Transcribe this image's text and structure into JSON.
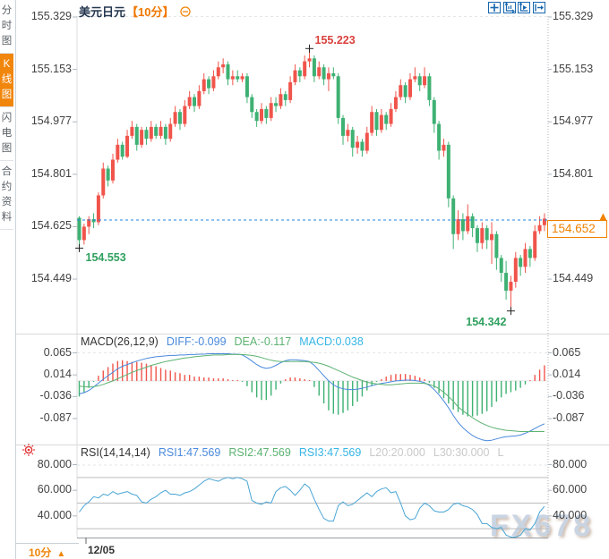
{
  "header": {
    "symbol": "美元日元",
    "period": "【10分】"
  },
  "sidebar": {
    "tabs": [
      {
        "label": "分时图",
        "active": false
      },
      {
        "label": "K线图",
        "active": true
      },
      {
        "label": "闪电图",
        "active": false
      },
      {
        "label": "合约资料",
        "active": false
      }
    ]
  },
  "toolbar": {
    "icons": [
      "pan-icon",
      "axis-zoom-y-icon",
      "axis-zoom-x-icon",
      "pan-right-icon"
    ]
  },
  "bottom": {
    "period_label": "10分",
    "date_label": "12/05"
  },
  "watermark": "FX678",
  "colors": {
    "up": "#f0544b",
    "down": "#3eb173",
    "diff_line": "#4a89dc",
    "dea_line": "#5cb271",
    "macd_cyan": "#35b5e5",
    "price_line": "#1e86e0",
    "accent_orange": "#f0860a",
    "anno_red": "#d9413d",
    "anno_green": "#2fa05f",
    "active_tab_bg": "#f1860d"
  },
  "chart_data": [
    {
      "type": "candlestick",
      "title": "美元日元【10分】",
      "y_ticks_left": [
        "155.329",
        "155.153",
        "154.977",
        "154.801",
        "154.625",
        "154.449"
      ],
      "y_tick_values_left": [
        155.329,
        155.153,
        154.977,
        154.801,
        154.625,
        154.449
      ],
      "y_ticks_right": [
        "155.329",
        "155.153",
        "154.977",
        "154.801",
        "154.449"
      ],
      "y_tick_values_right": [
        155.329,
        155.153,
        154.977,
        154.801,
        154.449
      ],
      "current_price": 154.652,
      "current_price_label": "154.652",
      "x_tick_label": "12/05",
      "annotations": [
        {
          "type": "high",
          "index": 48,
          "price": 155.223,
          "label": "155.223",
          "placement": "above-right"
        },
        {
          "type": "low",
          "index": 0,
          "price": 154.553,
          "label": "154.553",
          "placement": "below-right"
        },
        {
          "type": "low",
          "index": 90,
          "price": 154.342,
          "label": "154.342",
          "placement": "below-left"
        }
      ],
      "candles": [
        [
          154.655,
          154.66,
          154.553,
          154.58
        ],
        [
          154.58,
          154.635,
          154.565,
          154.625
        ],
        [
          154.625,
          154.66,
          154.6,
          154.65
        ],
        [
          154.65,
          154.67,
          154.62,
          154.64
        ],
        [
          154.64,
          154.74,
          154.63,
          154.73
        ],
        [
          154.73,
          154.84,
          154.72,
          154.82
        ],
        [
          154.82,
          154.83,
          154.76,
          154.78
        ],
        [
          154.78,
          154.87,
          154.77,
          154.85
        ],
        [
          154.85,
          154.92,
          154.84,
          154.9
        ],
        [
          154.9,
          154.91,
          154.85,
          154.86
        ],
        [
          154.86,
          154.95,
          154.855,
          154.93
        ],
        [
          154.93,
          154.98,
          154.92,
          154.96
        ],
        [
          154.96,
          154.97,
          154.88,
          154.9
        ],
        [
          154.9,
          154.96,
          154.89,
          154.95
        ],
        [
          154.95,
          154.96,
          154.9,
          154.92
        ],
        [
          154.92,
          154.98,
          154.91,
          154.96
        ],
        [
          154.96,
          154.97,
          154.92,
          154.93
        ],
        [
          154.93,
          154.98,
          154.92,
          154.96
        ],
        [
          154.96,
          154.97,
          154.9,
          154.92
        ],
        [
          154.92,
          154.99,
          154.91,
          154.97
        ],
        [
          154.97,
          155.03,
          154.96,
          155.01
        ],
        [
          155.01,
          155.02,
          154.95,
          154.97
        ],
        [
          154.97,
          155.05,
          154.96,
          155.03
        ],
        [
          155.03,
          155.08,
          155.02,
          155.06
        ],
        [
          155.06,
          155.07,
          155.01,
          155.03
        ],
        [
          155.03,
          155.1,
          155.02,
          155.08
        ],
        [
          155.08,
          155.14,
          155.07,
          155.12
        ],
        [
          155.12,
          155.13,
          155.07,
          155.09
        ],
        [
          155.09,
          155.15,
          155.08,
          155.13
        ],
        [
          155.13,
          155.18,
          155.12,
          155.16
        ],
        [
          155.16,
          155.19,
          155.14,
          155.17
        ],
        [
          155.17,
          155.18,
          155.1,
          155.12
        ],
        [
          155.12,
          155.15,
          155.1,
          155.13
        ],
        [
          155.13,
          155.15,
          155.11,
          155.12
        ],
        [
          155.12,
          155.14,
          155.11,
          155.13
        ],
        [
          155.13,
          155.14,
          155.04,
          155.06
        ],
        [
          155.06,
          155.07,
          154.99,
          155.01
        ],
        [
          155.01,
          155.02,
          154.96,
          154.98
        ],
        [
          154.98,
          155.04,
          154.97,
          155.02
        ],
        [
          155.02,
          155.03,
          154.97,
          154.99
        ],
        [
          154.99,
          155.06,
          154.98,
          155.04
        ],
        [
          155.04,
          155.06,
          155.01,
          155.03
        ],
        [
          155.03,
          155.09,
          155.02,
          155.07
        ],
        [
          155.07,
          155.08,
          155.03,
          155.05
        ],
        [
          155.05,
          155.13,
          155.04,
          155.11
        ],
        [
          155.11,
          155.17,
          155.1,
          155.15
        ],
        [
          155.15,
          155.16,
          155.11,
          155.13
        ],
        [
          155.13,
          155.2,
          155.12,
          155.18
        ],
        [
          155.18,
          155.223,
          155.16,
          155.19
        ],
        [
          155.19,
          155.2,
          155.11,
          155.13
        ],
        [
          155.13,
          155.18,
          155.12,
          155.16
        ],
        [
          155.16,
          155.17,
          155.1,
          155.12
        ],
        [
          155.12,
          155.16,
          155.08,
          155.14
        ],
        [
          155.14,
          155.16,
          155.12,
          155.13
        ],
        [
          155.13,
          155.14,
          154.97,
          154.99
        ],
        [
          154.99,
          155.0,
          154.9,
          154.93
        ],
        [
          154.93,
          154.97,
          154.91,
          154.95
        ],
        [
          154.95,
          154.96,
          154.86,
          154.89
        ],
        [
          154.89,
          154.93,
          154.87,
          154.91
        ],
        [
          154.91,
          154.92,
          154.86,
          154.88
        ],
        [
          154.88,
          154.96,
          154.87,
          154.94
        ],
        [
          154.94,
          155.03,
          154.93,
          155.01
        ],
        [
          155.01,
          155.02,
          154.93,
          154.95
        ],
        [
          154.95,
          155.02,
          154.94,
          155.0
        ],
        [
          155.0,
          155.01,
          154.95,
          154.97
        ],
        [
          154.97,
          155.04,
          154.96,
          155.02
        ],
        [
          155.02,
          155.08,
          155.01,
          155.06
        ],
        [
          155.06,
          155.12,
          155.05,
          155.1
        ],
        [
          155.1,
          155.11,
          155.04,
          155.06
        ],
        [
          155.06,
          155.14,
          155.05,
          155.12
        ],
        [
          155.12,
          155.16,
          155.11,
          155.13
        ],
        [
          155.13,
          155.14,
          155.08,
          155.1
        ],
        [
          155.1,
          155.16,
          155.09,
          155.13
        ],
        [
          155.13,
          155.14,
          155.03,
          155.05
        ],
        [
          155.05,
          155.06,
          154.94,
          154.97
        ],
        [
          154.97,
          154.98,
          154.85,
          154.88
        ],
        [
          154.88,
          154.92,
          154.86,
          154.9
        ],
        [
          154.9,
          154.91,
          154.69,
          154.72
        ],
        [
          154.72,
          154.73,
          154.55,
          154.6
        ],
        [
          154.6,
          154.68,
          154.58,
          154.65
        ],
        [
          154.65,
          154.67,
          154.58,
          154.61
        ],
        [
          154.61,
          154.7,
          154.6,
          154.66
        ],
        [
          154.66,
          154.67,
          154.59,
          154.62
        ],
        [
          154.62,
          154.63,
          154.54,
          154.57
        ],
        [
          154.57,
          154.64,
          154.55,
          154.62
        ],
        [
          154.62,
          154.63,
          154.55,
          154.58
        ],
        [
          154.58,
          154.64,
          154.5,
          154.6
        ],
        [
          154.6,
          154.61,
          154.48,
          154.52
        ],
        [
          154.52,
          154.53,
          154.44,
          154.47
        ],
        [
          154.47,
          154.51,
          154.38,
          154.41
        ],
        [
          154.41,
          154.46,
          154.342,
          154.44
        ],
        [
          154.44,
          154.54,
          154.42,
          154.52
        ],
        [
          154.52,
          154.53,
          154.46,
          154.49
        ],
        [
          154.49,
          154.57,
          154.47,
          154.55
        ],
        [
          154.55,
          154.56,
          154.49,
          154.52
        ],
        [
          154.52,
          154.63,
          154.51,
          154.61
        ],
        [
          154.61,
          154.66,
          154.6,
          154.63
        ],
        [
          154.63,
          154.67,
          154.61,
          154.652
        ]
      ]
    },
    {
      "type": "macd",
      "header": [
        {
          "label": "MACD(26,12,9)",
          "color": "#333333"
        },
        {
          "label": "DIFF:-0.099",
          "color": "#4a89dc"
        },
        {
          "label": "DEA:-0.117",
          "color": "#5cb271"
        },
        {
          "label": "MACD:0.038",
          "color": "#35b5e5"
        }
      ],
      "y_ticks": [
        "0.065",
        "0.014",
        "-0.036",
        "-0.087"
      ],
      "y_tick_values": [
        0.065,
        0.014,
        -0.036,
        -0.087
      ],
      "diff": [
        -0.03,
        -0.027,
        -0.022,
        -0.014,
        -0.005,
        0.004,
        0.012,
        0.02,
        0.028,
        0.034,
        0.038,
        0.042,
        0.046,
        0.049,
        0.052,
        0.054,
        0.056,
        0.057,
        0.058,
        0.059,
        0.059,
        0.06,
        0.06,
        0.061,
        0.061,
        0.062,
        0.062,
        0.063,
        0.063,
        0.063,
        0.063,
        0.063,
        0.062,
        0.062,
        0.06,
        0.054,
        0.046,
        0.038,
        0.032,
        0.029,
        0.031,
        0.036,
        0.042,
        0.047,
        0.049,
        0.049,
        0.048,
        0.047,
        0.045,
        0.036,
        0.024,
        0.012,
        0.0,
        -0.009,
        -0.015,
        -0.018,
        -0.02,
        -0.02,
        -0.019,
        -0.017,
        -0.014,
        -0.011,
        -0.008,
        -0.006,
        -0.004,
        -0.002,
        0.0,
        0.001,
        0.002,
        0.002,
        0.001,
        -0.001,
        -0.004,
        -0.01,
        -0.02,
        -0.032,
        -0.046,
        -0.062,
        -0.08,
        -0.096,
        -0.108,
        -0.118,
        -0.126,
        -0.132,
        -0.136,
        -0.138,
        -0.137,
        -0.134,
        -0.131,
        -0.129,
        -0.128,
        -0.127,
        -0.125,
        -0.121,
        -0.116,
        -0.11,
        -0.104,
        -0.099
      ],
      "dea": [
        -0.012,
        -0.013,
        -0.014,
        -0.013,
        -0.011,
        -0.008,
        -0.004,
        0.0,
        0.005,
        0.01,
        0.015,
        0.02,
        0.024,
        0.028,
        0.032,
        0.036,
        0.039,
        0.042,
        0.045,
        0.047,
        0.049,
        0.051,
        0.053,
        0.054,
        0.056,
        0.057,
        0.058,
        0.059,
        0.06,
        0.06,
        0.06,
        0.061,
        0.061,
        0.061,
        0.061,
        0.06,
        0.059,
        0.057,
        0.054,
        0.051,
        0.048,
        0.046,
        0.045,
        0.045,
        0.045,
        0.045,
        0.045,
        0.045,
        0.044,
        0.043,
        0.041,
        0.038,
        0.034,
        0.029,
        0.024,
        0.019,
        0.014,
        0.009,
        0.005,
        0.001,
        -0.003,
        -0.005,
        -0.007,
        -0.008,
        -0.009,
        -0.009,
        -0.008,
        -0.007,
        -0.006,
        -0.005,
        -0.005,
        -0.005,
        -0.006,
        -0.008,
        -0.012,
        -0.018,
        -0.026,
        -0.036,
        -0.047,
        -0.06,
        -0.069,
        -0.077,
        -0.085,
        -0.092,
        -0.098,
        -0.103,
        -0.107,
        -0.11,
        -0.112,
        -0.114,
        -0.115,
        -0.116,
        -0.117,
        -0.117,
        -0.117,
        -0.117,
        -0.117,
        -0.117
      ],
      "hist_rule": "2x(diff-dea)"
    },
    {
      "type": "rsi",
      "header": [
        {
          "label": "RSI(14,14,14)",
          "color": "#333333"
        },
        {
          "label": "RSI1:47.569",
          "color": "#4a89dc"
        },
        {
          "label": "RSI2:47.569",
          "color": "#5cb271"
        },
        {
          "label": "RSI3:47.569",
          "color": "#35b5e5"
        },
        {
          "label": "L20:20.000",
          "color": "#c9c9c9"
        },
        {
          "label": "L30:30.000",
          "color": "#c9c9c9"
        },
        {
          "label": "L",
          "color": "#c9c9c9"
        }
      ],
      "y_ticks": [
        "80.000",
        "60.000",
        "40.000"
      ],
      "y_tick_values": [
        80,
        60,
        40
      ],
      "levels": [
        80,
        70,
        50,
        30
      ],
      "rsi": [
        43,
        48,
        51,
        55,
        54,
        57,
        56,
        59,
        57,
        58,
        59,
        57,
        56,
        51,
        50,
        53,
        55,
        58,
        60,
        57,
        57,
        56,
        58,
        59,
        61,
        64,
        67,
        69,
        68,
        67,
        69,
        70,
        69,
        70,
        69,
        67,
        52,
        50,
        49,
        51,
        50,
        59,
        62,
        63,
        60,
        56,
        60,
        65,
        62,
        53,
        45,
        38,
        36,
        36,
        48,
        51,
        48,
        49,
        52,
        55,
        58,
        55,
        59,
        61,
        62,
        58,
        59,
        50,
        40,
        37,
        38,
        46,
        50,
        48,
        44,
        43,
        43,
        45,
        49,
        50,
        48,
        47,
        45,
        41,
        34,
        34,
        31,
        30,
        31,
        25,
        21,
        20,
        25,
        30,
        29,
        34,
        43,
        47.5
      ]
    }
  ]
}
